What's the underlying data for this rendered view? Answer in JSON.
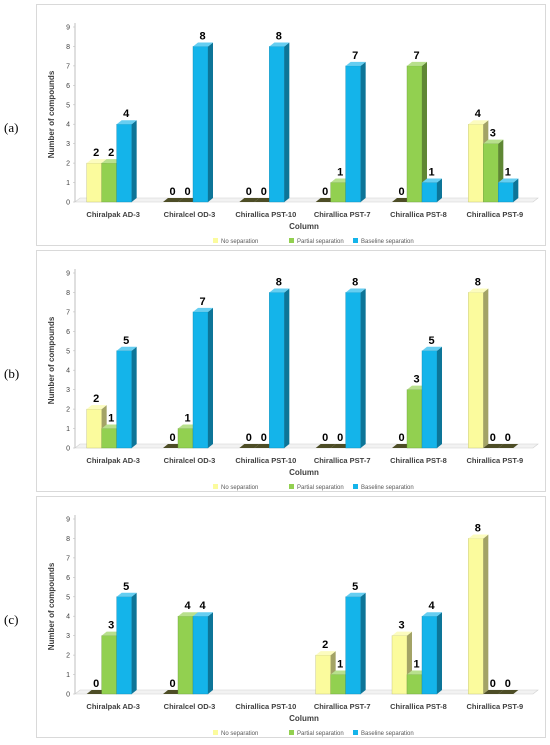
{
  "panels": [
    {
      "label": "(a)"
    },
    {
      "label": "(b)"
    },
    {
      "label": "(c)"
    }
  ],
  "colors": {
    "no_separation": "#fbfb9d",
    "partial_separation": "#92d050",
    "baseline_separation": "#14b4ea"
  },
  "chart_data": [
    {
      "type": "bar",
      "title": "",
      "xlabel": "Column",
      "ylabel": "Number of compounds",
      "ylim": [
        0,
        9
      ],
      "yticks": [
        "0",
        "1",
        "2",
        "3",
        "4",
        "5",
        "6",
        "7",
        "8",
        "9"
      ],
      "grid": false,
      "legend_position": "bottom",
      "categories": [
        "Chiralpak AD-3",
        "Chiralcel OD-3",
        "Chirallica PST-10",
        "Chirallica PST-7",
        "Chirallica PST-8",
        "Chirallica PST-9"
      ],
      "series": [
        {
          "name": "No separation",
          "values": [
            2,
            0,
            0,
            0,
            0,
            4
          ],
          "labels": [
            "2",
            "0",
            "0",
            "0",
            "0",
            "4"
          ]
        },
        {
          "name": "Partial separation",
          "values": [
            2,
            0,
            0,
            1,
            7,
            3
          ],
          "labels": [
            "2",
            "0",
            "0",
            "1",
            "7",
            "3"
          ]
        },
        {
          "name": "Baseline separation",
          "values": [
            4,
            8,
            8,
            7,
            1,
            1
          ],
          "labels": [
            "4",
            "8",
            "8",
            "7",
            "1",
            "1"
          ]
        }
      ]
    },
    {
      "type": "bar",
      "title": "",
      "xlabel": "Column",
      "ylabel": "Number of compounds",
      "ylim": [
        0,
        9
      ],
      "yticks": [
        "0",
        "1",
        "2",
        "3",
        "4",
        "5",
        "6",
        "7",
        "8",
        "9"
      ],
      "grid": false,
      "legend_position": "bottom",
      "categories": [
        "Chiralpak AD-3",
        "Chiralcel OD-3",
        "Chirallica PST-10",
        "Chirallica PST-7",
        "Chirallica PST-8",
        "Chirallica PST-9"
      ],
      "series": [
        {
          "name": "No separation",
          "values": [
            2,
            0,
            0,
            0,
            0,
            8
          ],
          "labels": [
            "2",
            "0",
            "0",
            "0",
            "0",
            "8"
          ]
        },
        {
          "name": "Partial separation",
          "values": [
            1,
            1,
            0,
            0,
            3,
            0
          ],
          "labels": [
            "1",
            "1",
            "0",
            "0",
            "3",
            "0"
          ]
        },
        {
          "name": "Baseline separation",
          "values": [
            5,
            7,
            8,
            8,
            5,
            0
          ],
          "labels": [
            "5",
            "7",
            "8",
            "8",
            "5",
            "0"
          ]
        }
      ]
    },
    {
      "type": "bar",
      "title": "",
      "xlabel": "Column",
      "ylabel": "Number of compounds",
      "ylim": [
        0,
        9
      ],
      "yticks": [
        "0",
        "1",
        "2",
        "3",
        "4",
        "5",
        "6",
        "7",
        "8",
        "9"
      ],
      "grid": false,
      "legend_position": "bottom",
      "categories": [
        "Chiralpak AD-3",
        "Chiralcel OD-3",
        "Chirallica PST-10",
        "Chirallica PST-7",
        "Chirallica PST-8",
        "Chirallica PST-9"
      ],
      "series": [
        {
          "name": "No separation",
          "values": [
            0,
            0,
            null,
            2,
            3,
            8
          ],
          "labels": [
            "0",
            "0",
            "",
            "2",
            "3",
            "8"
          ]
        },
        {
          "name": "Partial separation",
          "values": [
            3,
            4,
            null,
            1,
            1,
            0
          ],
          "labels": [
            "3",
            "4",
            "",
            "1",
            "1",
            "0"
          ]
        },
        {
          "name": "Baseline separation",
          "values": [
            5,
            4,
            null,
            5,
            4,
            0
          ],
          "labels": [
            "5",
            "4",
            "",
            "5",
            "4",
            "0"
          ]
        }
      ]
    }
  ]
}
